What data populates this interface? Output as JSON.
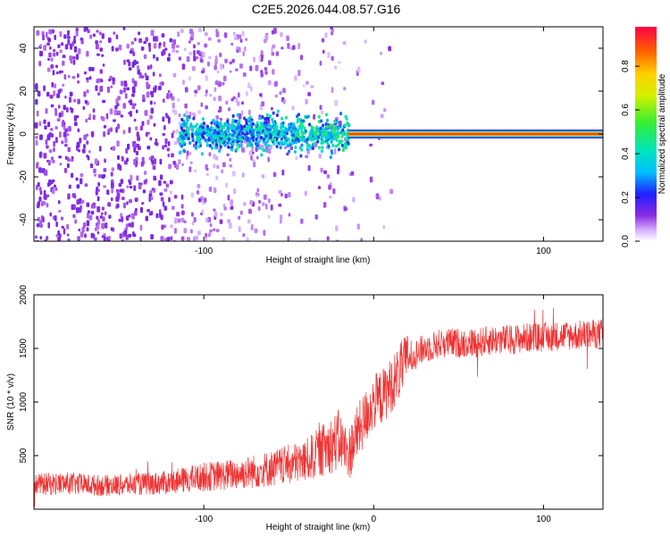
{
  "title": "C2E5.2026.044.08.57.G16",
  "colors": {
    "snr_line": "#ee3333",
    "axis": "#000000",
    "background": "#ffffff"
  },
  "chart_data": [
    {
      "type": "heatmap",
      "title": "",
      "xlabel": "Height of straight line (km)",
      "ylabel": "Frequency (Hz)",
      "xlim": [
        -200,
        135
      ],
      "ylim": [
        -50,
        50
      ],
      "xticks": [
        -100,
        0,
        100
      ],
      "xtick_labels": [
        "-100",
        "",
        "100"
      ],
      "yticks": [
        -40,
        -20,
        0,
        20,
        40
      ],
      "ytick_labels": [
        "-40",
        "-20",
        "0",
        "20",
        "40"
      ],
      "colorbar": {
        "label": "Normalized spectral amplitude",
        "range": [
          0.0,
          0.98
        ],
        "ticks": [
          0.0,
          0.2,
          0.4,
          0.6,
          0.8
        ],
        "tick_labels": [
          "0.0",
          "0.2",
          "0.4",
          "0.6",
          "0.8"
        ],
        "colormap": "rainbow (violet-blue-cyan-green-yellow-red)"
      },
      "regions": [
        {
          "x_range": [
            -200,
            -60
          ],
          "description_level": 0.15,
          "frequency_spread_hz": 50
        },
        {
          "x_range": [
            -115,
            -15
          ],
          "description_level": 0.4,
          "frequency_spread_hz": 8
        },
        {
          "x_range": [
            -15,
            135
          ],
          "description_level": 0.95,
          "frequency_spread_hz": 1
        }
      ]
    },
    {
      "type": "line",
      "title": "",
      "xlabel": "Height of straight line (km)",
      "ylabel": "SNR (10 * v/v)",
      "xlim": [
        -200,
        135
      ],
      "ylim": [
        0,
        2000
      ],
      "xticks": [
        -100,
        0,
        100
      ],
      "xtick_labels": [
        "-100",
        "0",
        "100"
      ],
      "yticks": [
        500,
        1000,
        1500,
        2000
      ],
      "ytick_labels": [
        "500",
        "1000",
        "1500",
        "2000"
      ],
      "series": [
        {
          "color": "#ee3333",
          "x": [
            -200,
            -180,
            -160,
            -140,
            -120,
            -100,
            -80,
            -60,
            -40,
            -30,
            -20,
            -15,
            -10,
            -5,
            0,
            5,
            10,
            20,
            30,
            40,
            50,
            60,
            70,
            80,
            90,
            100,
            110,
            120,
            135
          ],
          "y": [
            230,
            240,
            220,
            230,
            250,
            300,
            330,
            380,
            450,
            550,
            650,
            500,
            700,
            850,
            1000,
            1050,
            1150,
            1400,
            1500,
            1550,
            1550,
            1550,
            1580,
            1580,
            1600,
            1600,
            1620,
            1620,
            1640
          ]
        }
      ]
    }
  ]
}
